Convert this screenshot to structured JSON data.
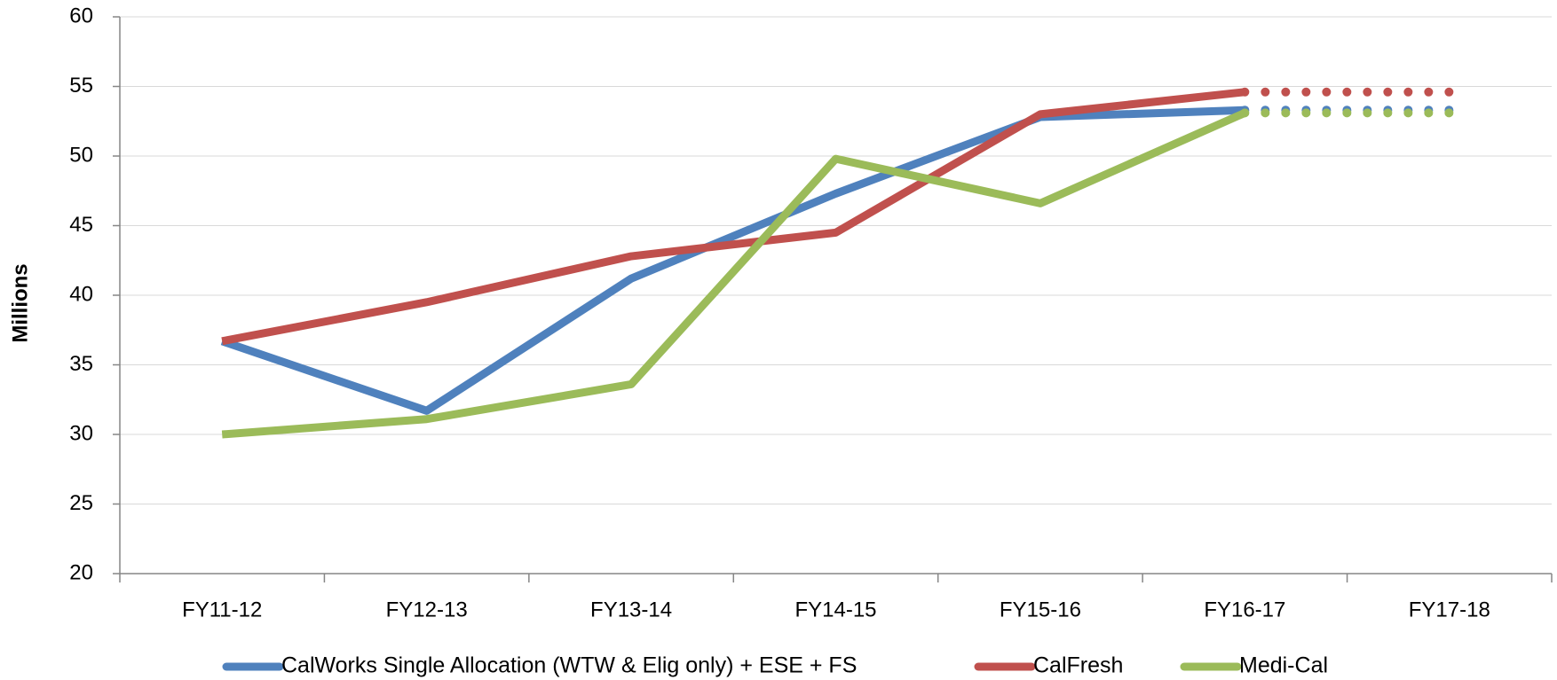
{
  "chart_data": {
    "type": "line",
    "y_label": "Millions",
    "categories": [
      "FY11-12",
      "FY12-13",
      "FY13-14",
      "FY14-15",
      "FY15-16",
      "FY16-17",
      "FY17-18"
    ],
    "series": [
      {
        "name": "CalWorks Single Allocation (WTW & Elig only) + ESE + FS",
        "color": "#4f81bd",
        "values": [
          36.7,
          31.7,
          41.2,
          47.3,
          52.8,
          53.3,
          53.3
        ]
      },
      {
        "name": "CalFresh",
        "color": "#c0504d",
        "values": [
          36.7,
          39.5,
          42.8,
          44.5,
          53.0,
          54.6,
          54.6
        ]
      },
      {
        "name": "Medi-Cal",
        "color": "#9bbb59",
        "values": [
          30.0,
          31.1,
          33.6,
          49.8,
          46.6,
          53.1,
          53.1
        ]
      }
    ],
    "dotted_last_segment": true,
    "ylim": [
      20,
      60
    ],
    "yticks": [
      20,
      25,
      30,
      35,
      40,
      45,
      50,
      55,
      60
    ],
    "grid": true,
    "legend": "bottom"
  }
}
